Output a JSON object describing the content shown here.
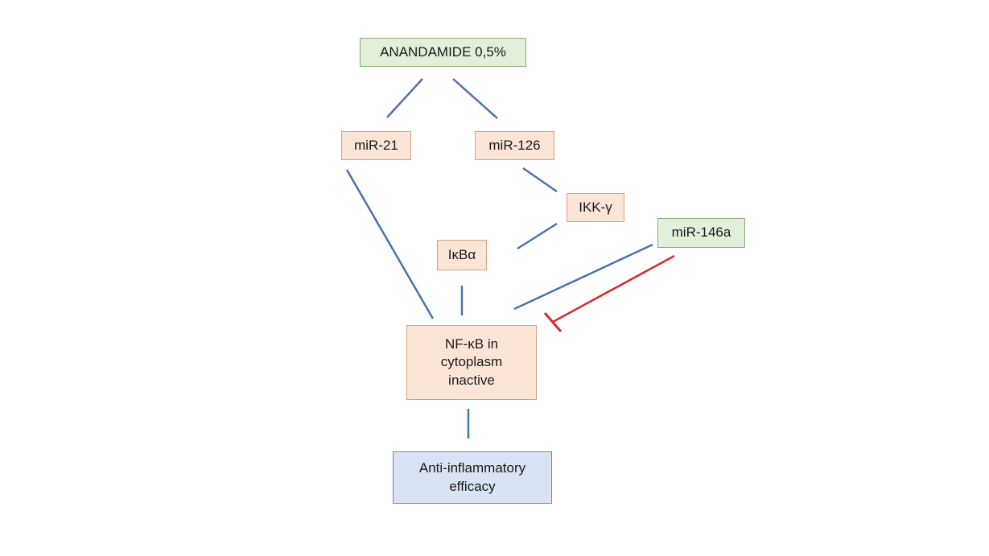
{
  "nodes": {
    "anandamide": "ANANDAMIDE 0,5%",
    "mir21": "miR-21",
    "mir126": "miR-126",
    "ikk": "IKK-γ",
    "ikba": "IκBα",
    "mir146a": "miR-146a",
    "nfkb": [
      "NF-κB in",
      "cytoplasm",
      "inactive"
    ],
    "efficacy": [
      "Anti-inflammatory",
      "efficacy"
    ]
  },
  "colors": {
    "arrow": "#4a72b0",
    "inhibition": "#d22b2b",
    "green_fill": "#e2efda",
    "orange_fill": "#fbe5d6",
    "blue_fill": "#dae3f3"
  }
}
